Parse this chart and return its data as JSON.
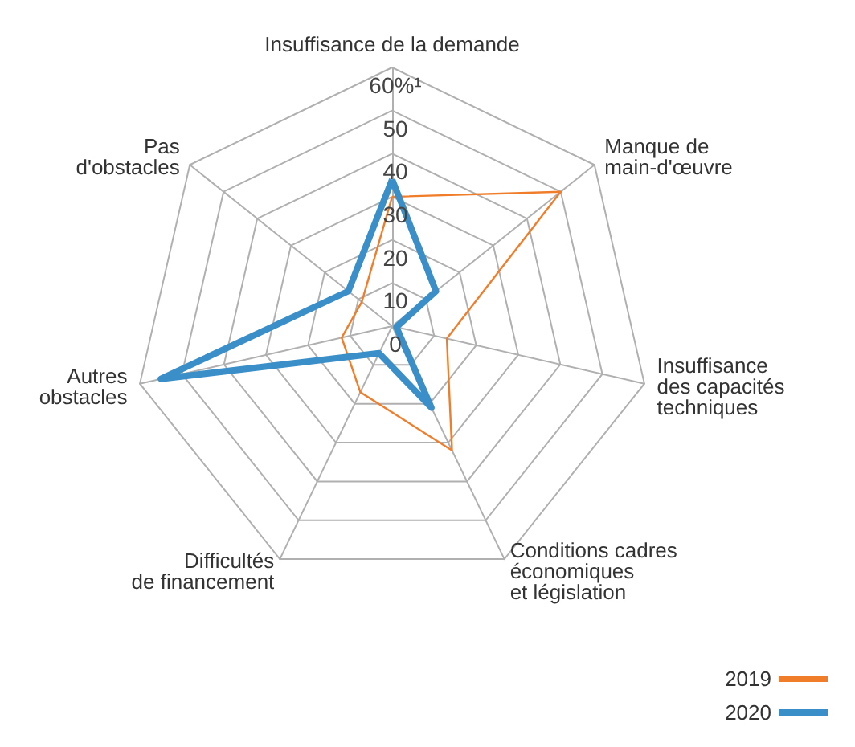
{
  "chart_data": {
    "type": "radar",
    "categories": [
      "Insuffisance de la demande",
      "Manque de\nmain-d'œuvre",
      "Insuffisance\ndes capacités\ntechniques",
      "Conditions cadres\néconomiques\net législation",
      "Difficultés\nde financement",
      "Autres\nobstacles",
      "Pas\nd'obstacles"
    ],
    "series": [
      {
        "name": "2019",
        "color": "#f07d2a",
        "values": [
          30,
          50,
          13,
          32,
          17,
          12,
          9
        ]
      },
      {
        "name": "2020",
        "color": "#3a8fc8",
        "values": [
          34,
          13,
          1,
          21,
          7,
          55,
          13
        ]
      }
    ],
    "ylim": [
      0,
      60
    ],
    "yticks": [
      0,
      10,
      20,
      30,
      40,
      50,
      {
        "value": 60,
        "label": "60%¹"
      }
    ],
    "legend": "bottom right",
    "grid": true
  }
}
